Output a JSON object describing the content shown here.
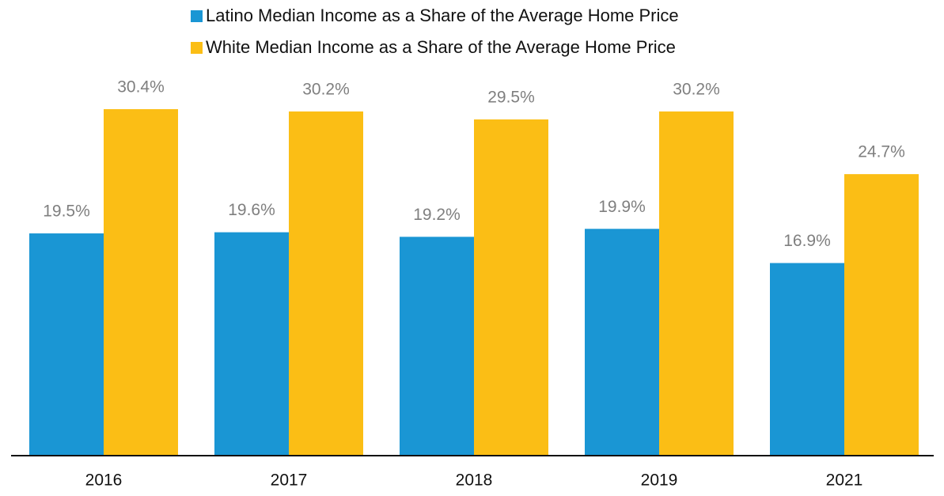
{
  "chart_data": {
    "type": "bar",
    "categories": [
      "2016",
      "2017",
      "2018",
      "2019",
      "2021"
    ],
    "series": [
      {
        "name": "Latino Median Income as a Share of the Average Home Price",
        "color": "#1a96d4",
        "values": [
          19.5,
          19.6,
          19.2,
          19.9,
          16.9
        ],
        "value_labels": [
          "19.5%",
          "19.6%",
          "19.2%",
          "19.9%",
          "16.9%"
        ]
      },
      {
        "name": "White Median Income as a Share of the Average Home Price",
        "color": "#fbbe15",
        "values": [
          30.4,
          30.2,
          29.5,
          30.2,
          24.7
        ],
        "value_labels": [
          "30.4%",
          "30.2%",
          "29.5%",
          "30.2%",
          "24.7%"
        ]
      }
    ],
    "legend": "top"
  }
}
